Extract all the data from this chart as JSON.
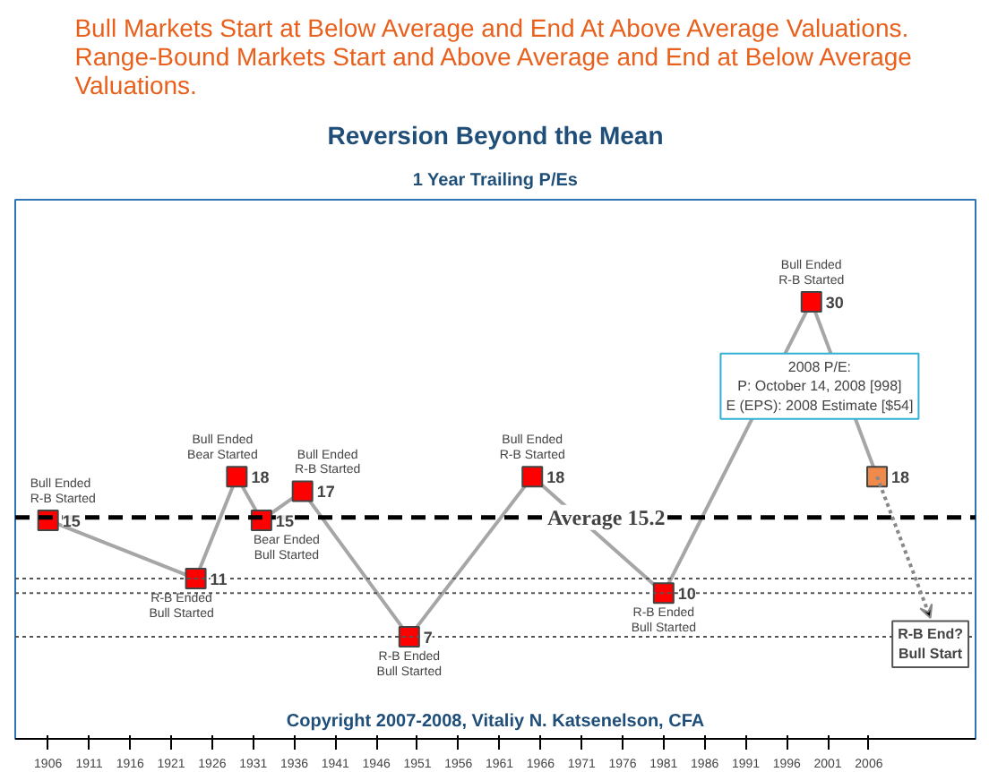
{
  "chart_data": {
    "type": "line",
    "title": "Reversion Beyond the Mean",
    "subtitle": "1 Year Trailing P/Es",
    "x": [
      1906,
      1924,
      1929,
      1932,
      1937,
      1950,
      1965,
      1981,
      1999,
      2007
    ],
    "series": [
      {
        "color": "#a6a6a6",
        "marker": "square",
        "colors": [
          "#ff0000",
          "#ff0000",
          "#ff0000",
          "#ff0000",
          "#ff0000",
          "#ff0000",
          "#ff0000",
          "#ff0000",
          "#ff0000",
          "#f08a4b"
        ],
        "values": [
          15,
          11,
          18,
          15,
          17,
          7,
          18,
          10,
          30,
          18
        ]
      }
    ],
    "data_labels": true,
    "xlim": [
      1902,
      2019
    ],
    "ylim": [
      0,
      37
    ],
    "xticks": [
      1906,
      1911,
      1916,
      1921,
      1926,
      1931,
      1936,
      1941,
      1946,
      1951,
      1956,
      1961,
      1966,
      1971,
      1976,
      1981,
      1986,
      1991,
      1996,
      2001,
      2006
    ],
    "tick_labels": "x",
    "grid": false,
    "ref_lines": [
      {
        "axis": "y",
        "value": 15.2,
        "label": "Average 15.2",
        "line_style": "dashed",
        "color": "#000000"
      },
      {
        "axis": "y",
        "value": 11,
        "line_style": "dotted",
        "color": "#555555"
      },
      {
        "axis": "y",
        "value": 10,
        "line_style": "dotted",
        "color": "#555555"
      },
      {
        "axis": "y",
        "value": 7,
        "line_style": "dotted",
        "color": "#555555"
      }
    ],
    "annotations": [
      "Bull Markets Start at Below Average and End At Above Average Valuations. Range-Bound Markets Start and Above Average and End at Below Average Valuations.",
      "Copyright 2007-2008, Vitaliy N. Katsenelson, CFA",
      "2008 P/E:\nP: October 14, 2008 [998]\nE (EPS): 2008 Estimate [$54]",
      "R-B End?\nBull Start",
      {
        "text": "Bull Ended\nR-B Started",
        "x": 1906,
        "y": 15
      },
      {
        "text": "R-B Ended\nBull Started",
        "x": 1924,
        "y": 11
      },
      {
        "text": "Bull Ended\nBear Started",
        "x": 1929,
        "y": 18
      },
      {
        "text": "Bear Ended\nBull Started",
        "x": 1932,
        "y": 15
      },
      {
        "text": "Bull Ended\nR-B Started",
        "x": 1937,
        "y": 17
      },
      {
        "text": "R-B Ended\nBull Started",
        "x": 1950,
        "y": 7
      },
      {
        "text": "Bull Ended\nR-B Started",
        "x": 1965,
        "y": 18
      },
      {
        "text": "R-B Ended\nBull Started",
        "x": 1981,
        "y": 10
      },
      {
        "text": "Bull Ended\nR-B Started",
        "x": 1999,
        "y": 30
      }
    ]
  }
}
